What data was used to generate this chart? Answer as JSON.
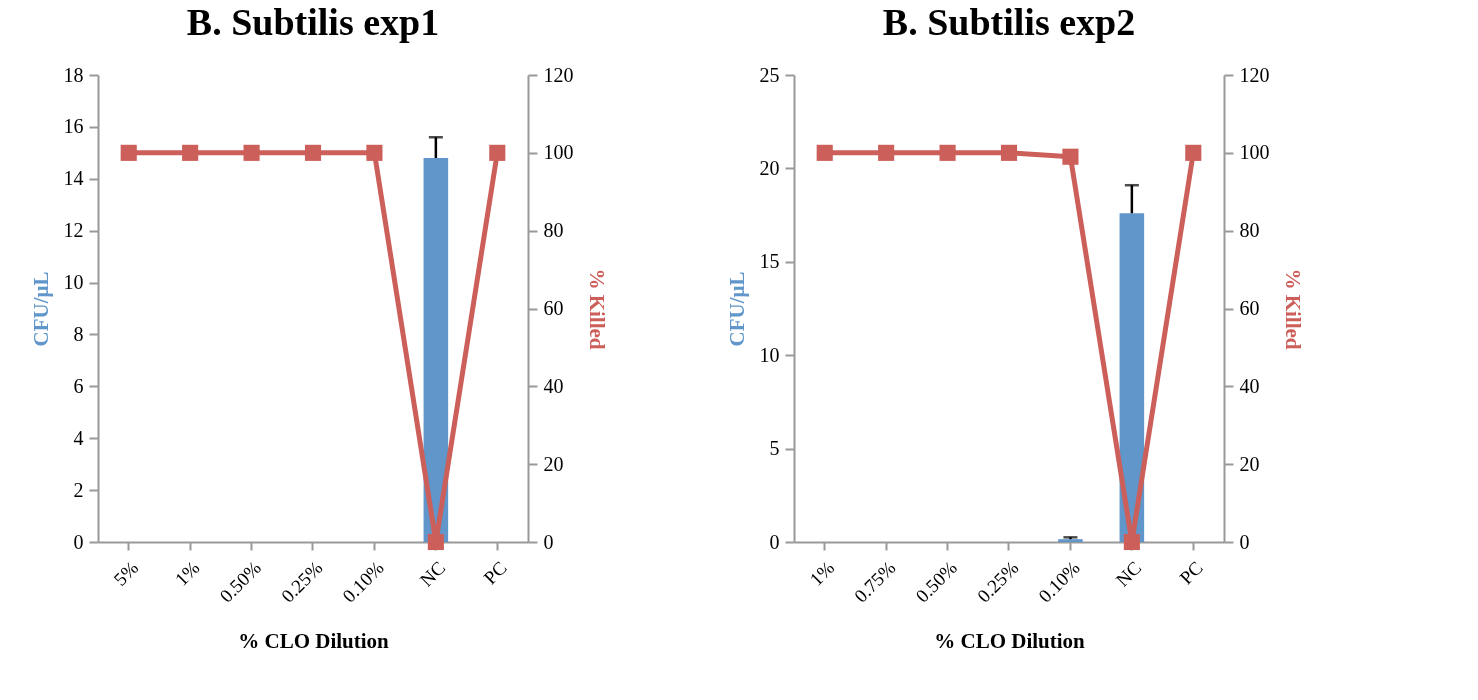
{
  "chart_data": [
    {
      "type": "bar",
      "title": "B. Subtilis exp1",
      "xlabel": "% CLO Dilution",
      "ylabel": "CFU/μL",
      "y2label": "% Killed",
      "categories": [
        "5%",
        "1%",
        "0.50%",
        "0.25%",
        "0.10%",
        "NC",
        "PC"
      ],
      "series": [
        {
          "color": "#6096c9",
          "values": [
            0,
            0,
            0,
            0,
            0,
            14.8,
            0
          ],
          "errors": [
            null,
            null,
            null,
            null,
            null,
            [
              14.8,
              15.6
            ],
            null
          ]
        },
        {
          "type": "line",
          "axis": "y2",
          "color": "#cd5f5a",
          "values": [
            100,
            100,
            100,
            100,
            100,
            0,
            100
          ]
        }
      ],
      "ylim": [
        0,
        18
      ],
      "yticks": [
        0,
        2,
        4,
        6,
        8,
        10,
        12,
        14,
        16,
        18
      ],
      "y2lim": [
        0,
        120
      ],
      "y2ticks": [
        0,
        20,
        40,
        60,
        80,
        100,
        120
      ],
      "marker": "square",
      "line_style": "solid",
      "grid": false
    },
    {
      "type": "bar",
      "title": "B. Subtilis exp2",
      "xlabel": "% CLO Dilution",
      "ylabel": "CFU/μL",
      "y2label": "% Killed",
      "categories": [
        "1%",
        "0.75%",
        "0.50%",
        "0.25%",
        "0.10%",
        "NC",
        "PC"
      ],
      "series": [
        {
          "color": "#6096c9",
          "values": [
            0,
            0,
            0,
            0,
            0.15,
            17.6,
            0
          ],
          "errors": [
            null,
            null,
            null,
            null,
            [
              0.15,
              0.25
            ],
            [
              17.6,
              19.1
            ],
            null
          ]
        },
        {
          "type": "line",
          "axis": "y2",
          "color": "#cd5f5a",
          "values": [
            100,
            100,
            100,
            100,
            99,
            0,
            100
          ]
        }
      ],
      "ylim": [
        0,
        25
      ],
      "yticks": [
        0,
        5,
        10,
        15,
        20,
        25
      ],
      "y2lim": [
        0,
        120
      ],
      "y2ticks": [
        0,
        20,
        40,
        60,
        80,
        100,
        120
      ],
      "marker": "square",
      "line_style": "solid",
      "grid": false
    }
  ]
}
